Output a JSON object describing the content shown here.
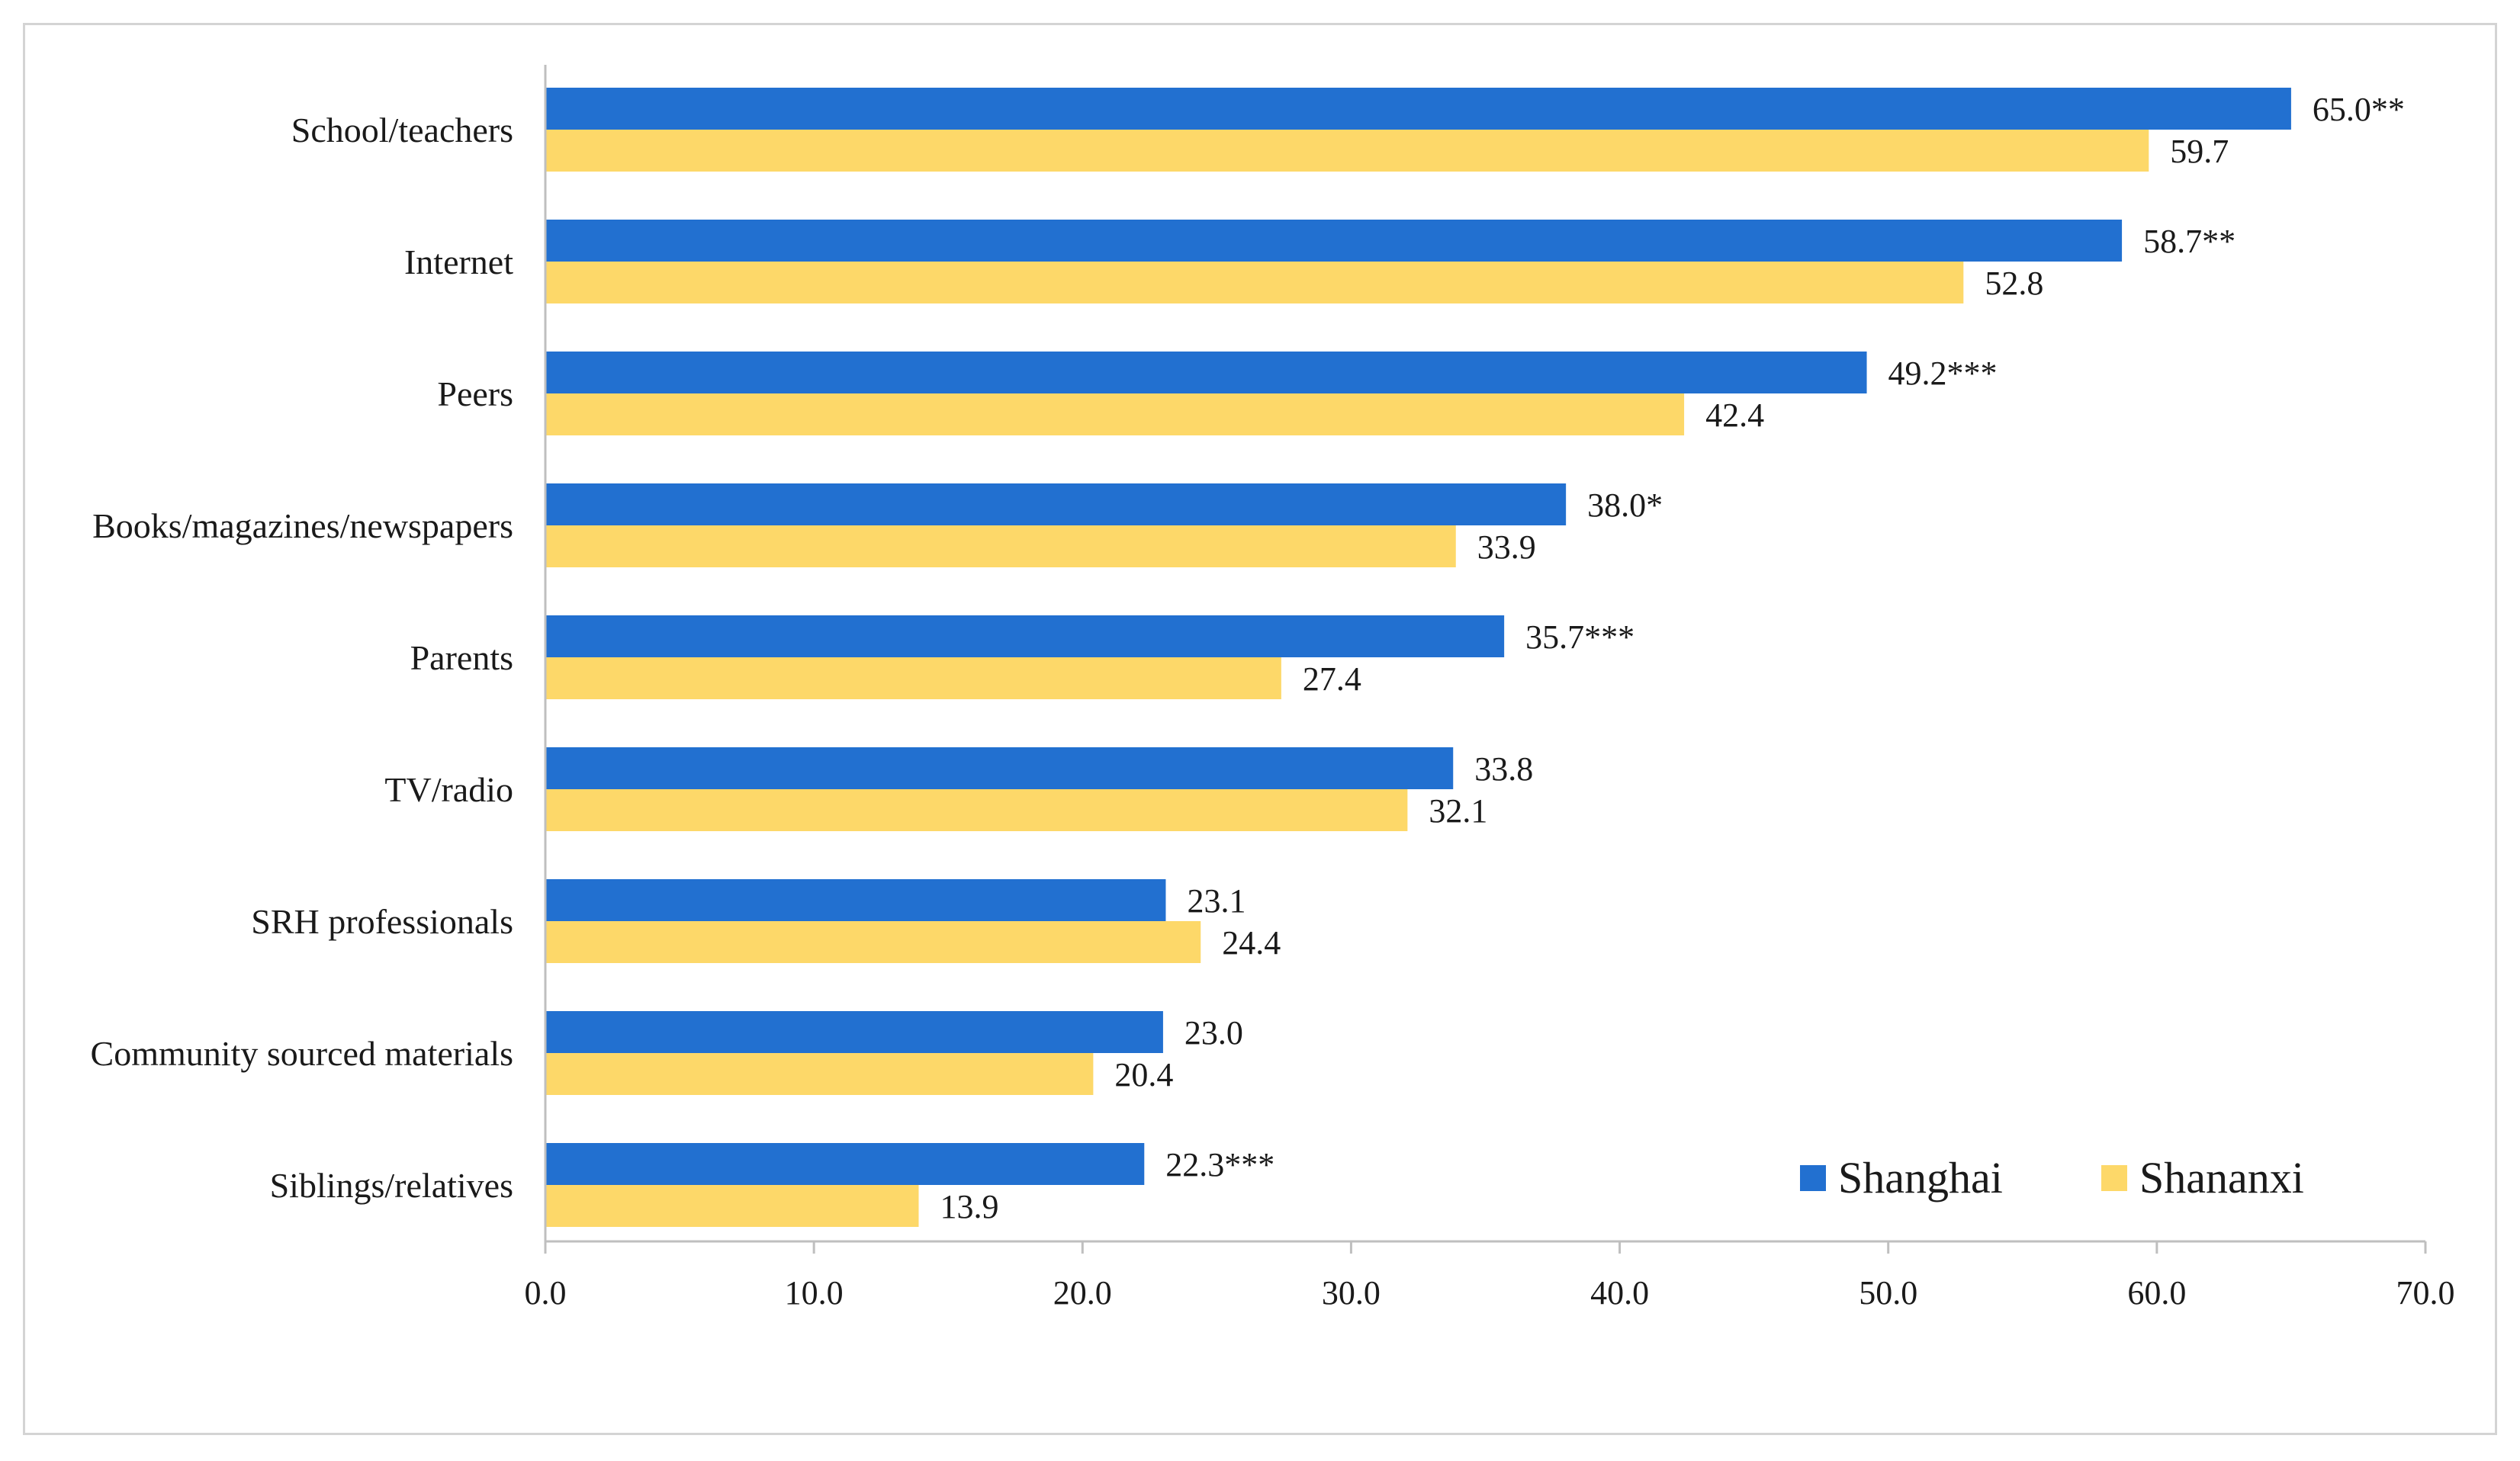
{
  "chart_data": {
    "type": "bar",
    "orientation": "horizontal",
    "categories": [
      "School/teachers",
      "Internet",
      "Peers",
      "Books/magazines/newspapers",
      "Parents",
      "TV/radio",
      "SRH professionals",
      "Community sourced materials",
      "Siblings/relatives"
    ],
    "series": [
      {
        "name": "Shanghai",
        "color": "#2270d0",
        "values": [
          65.0,
          58.7,
          49.2,
          38.0,
          35.7,
          33.8,
          23.1,
          23.0,
          22.3
        ],
        "labels": [
          "65.0**",
          "58.7**",
          "49.2***",
          "38.0*",
          "35.7***",
          "33.8",
          "23.1",
          "23.0",
          "22.3***"
        ]
      },
      {
        "name": "Shananxi",
        "color": "#fdd869",
        "values": [
          59.7,
          52.8,
          42.4,
          33.9,
          27.4,
          32.1,
          24.4,
          20.4,
          13.9
        ],
        "labels": [
          "59.7",
          "52.8",
          "42.4",
          "33.9",
          "27.4",
          "32.1",
          "24.4",
          "20.4",
          "13.9"
        ]
      }
    ],
    "xlim": [
      0,
      70
    ],
    "xticks": [
      "0.0",
      "10.0",
      "20.0",
      "30.0",
      "40.0",
      "50.0",
      "60.0",
      "70.0"
    ],
    "grid": false,
    "legend": "bottom-right",
    "title": "",
    "xlabel": "",
    "ylabel": ""
  }
}
